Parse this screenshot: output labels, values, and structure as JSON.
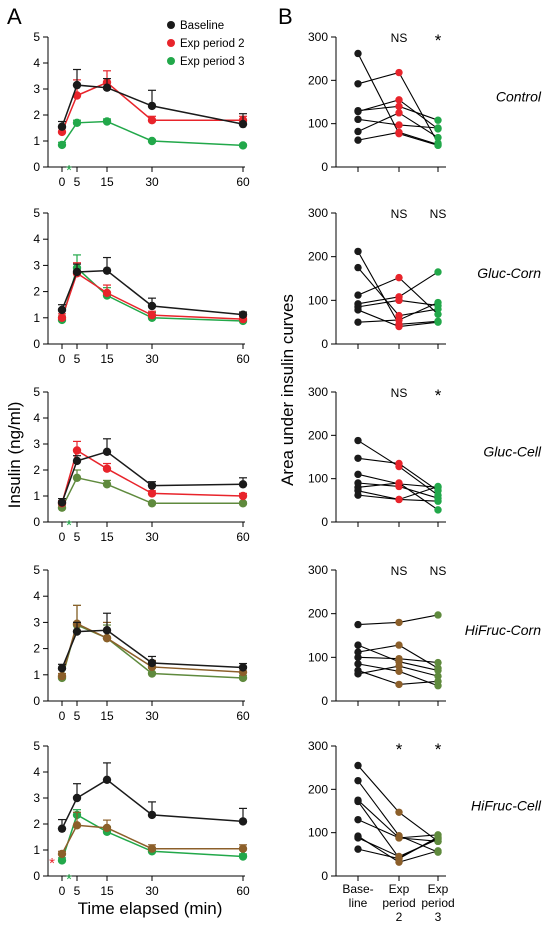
{
  "figure": {
    "panel_a_label": "A",
    "panel_b_label": "B",
    "a_ylabel": "Insulin (ng/ml)",
    "a_xlabel": "Time elapsed (min)",
    "b_ylabel": "Area under insulin curves",
    "legend": [
      {
        "name": "Baseline",
        "color": "#1a1a1a"
      },
      {
        "name": "Exp period 2",
        "color": "#e8242b"
      },
      {
        "name": "Exp period 3",
        "color": "#22a84a"
      }
    ],
    "b_x_labels": [
      [
        "Base-",
        "line"
      ],
      [
        "Exp",
        "period",
        "2"
      ],
      [
        "Exp",
        "period",
        "3"
      ]
    ]
  },
  "colors": {
    "baseline": "#1a1a1a",
    "period2": "#e8242b",
    "period3": "#22a84a",
    "period2_dark": "#8c5f2a",
    "period3_dark": "#5f8a3d"
  },
  "chart_data": [
    {
      "type": "line",
      "panel": "A",
      "row": 1,
      "x": [
        0,
        5,
        15,
        30,
        60
      ],
      "xlim": [
        0,
        60
      ],
      "ylim": [
        0,
        5
      ],
      "yticks": [
        0,
        1,
        2,
        3,
        4,
        5
      ],
      "xticks": [
        0,
        5,
        15,
        30,
        60
      ],
      "series": [
        {
          "name": "Baseline",
          "color": "#1a1a1a",
          "values": [
            1.55,
            3.15,
            3.05,
            2.35,
            1.65
          ],
          "err": [
            0.2,
            0.6,
            0.35,
            0.6,
            0.4
          ]
        },
        {
          "name": "Exp period 2",
          "color": "#e8242b",
          "values": [
            1.35,
            2.75,
            3.25,
            1.8,
            1.8
          ],
          "err": [
            0.15,
            0.6,
            0.45,
            0.15,
            0.15
          ]
        },
        {
          "name": "Exp period 3",
          "color": "#22a84a",
          "values": [
            0.85,
            1.7,
            1.75,
            1.0,
            0.83
          ],
          "err": [
            0.1,
            0.1,
            0.1,
            0.05,
            0.05
          ]
        }
      ],
      "annotations": [
        {
          "text": "*",
          "x": 5,
          "color": "#22a84a"
        }
      ]
    },
    {
      "type": "line",
      "panel": "A",
      "row": 2,
      "x": [
        0,
        5,
        15,
        30,
        60
      ],
      "xlim": [
        0,
        60
      ],
      "ylim": [
        0,
        5
      ],
      "yticks": [
        0,
        1,
        2,
        3,
        4,
        5
      ],
      "xticks": [
        0,
        5,
        15,
        30,
        60
      ],
      "series": [
        {
          "name": "Baseline",
          "color": "#1a1a1a",
          "values": [
            1.3,
            2.75,
            2.8,
            1.45,
            1.12
          ],
          "err": [
            0.2,
            0.3,
            0.5,
            0.3,
            0.1
          ]
        },
        {
          "name": "Exp period 2",
          "color": "#e8242b",
          "values": [
            1.0,
            2.7,
            1.95,
            1.1,
            0.95
          ],
          "err": [
            0.15,
            0.4,
            0.3,
            0.15,
            0.1
          ]
        },
        {
          "name": "Exp period 3",
          "color": "#22a84a",
          "values": [
            0.92,
            2.9,
            1.85,
            1.0,
            0.88
          ],
          "err": [
            0.15,
            0.5,
            0.3,
            0.2,
            0.1
          ]
        }
      ],
      "annotations": []
    },
    {
      "type": "line",
      "panel": "A",
      "row": 3,
      "x": [
        0,
        5,
        15,
        30,
        60
      ],
      "xlim": [
        0,
        60
      ],
      "ylim": [
        0,
        5
      ],
      "yticks": [
        0,
        1,
        2,
        3,
        4,
        5
      ],
      "xticks": [
        0,
        5,
        15,
        30,
        60
      ],
      "series": [
        {
          "name": "Baseline",
          "color": "#1a1a1a",
          "values": [
            0.75,
            2.35,
            2.7,
            1.4,
            1.45
          ],
          "err": [
            0.15,
            0.2,
            0.5,
            0.15,
            0.25
          ]
        },
        {
          "name": "Exp period 2",
          "color": "#e8242b",
          "values": [
            0.72,
            2.75,
            2.05,
            1.1,
            1.0
          ],
          "err": [
            0.1,
            0.35,
            0.2,
            0.1,
            0.1
          ]
        },
        {
          "name": "Exp period 3",
          "color": "#5f8a3d",
          "values": [
            0.55,
            1.7,
            1.45,
            0.72,
            0.72
          ],
          "err": [
            0.1,
            0.3,
            0.15,
            0.05,
            0.05
          ]
        }
      ],
      "annotations": [
        {
          "text": "*",
          "x": 5,
          "color": "#22a84a"
        }
      ]
    },
    {
      "type": "line",
      "panel": "A",
      "row": 4,
      "x": [
        0,
        5,
        15,
        30,
        60
      ],
      "xlim": [
        0,
        60
      ],
      "ylim": [
        0,
        5
      ],
      "yticks": [
        0,
        1,
        2,
        3,
        4,
        5
      ],
      "xticks": [
        0,
        5,
        15,
        30,
        60
      ],
      "series": [
        {
          "name": "Baseline",
          "color": "#1a1a1a",
          "values": [
            1.25,
            2.65,
            2.7,
            1.45,
            1.28
          ],
          "err": [
            0.15,
            0.35,
            0.65,
            0.25,
            0.15
          ]
        },
        {
          "name": "Exp period 2",
          "color": "#8c5f2a",
          "values": [
            0.95,
            2.95,
            2.4,
            1.3,
            1.1
          ],
          "err": [
            0.1,
            0.7,
            0.6,
            0.25,
            0.15
          ]
        },
        {
          "name": "Exp period 3",
          "color": "#5f8a3d",
          "values": [
            0.88,
            2.9,
            2.4,
            1.05,
            0.88
          ],
          "err": [
            0.1,
            0.75,
            0.5,
            0.2,
            0.1
          ]
        }
      ],
      "annotations": []
    },
    {
      "type": "line",
      "panel": "A",
      "row": 5,
      "x": [
        0,
        5,
        15,
        30,
        60
      ],
      "xlim": [
        0,
        60
      ],
      "ylim": [
        0,
        5
      ],
      "yticks": [
        0,
        1,
        2,
        3,
        4,
        5
      ],
      "xticks": [
        0,
        5,
        15,
        30,
        60
      ],
      "series": [
        {
          "name": "Baseline",
          "color": "#1a1a1a",
          "values": [
            1.82,
            3.0,
            3.7,
            2.35,
            2.1
          ],
          "err": [
            0.35,
            0.55,
            0.65,
            0.5,
            0.5
          ]
        },
        {
          "name": "Exp period 2",
          "color": "#8c5f2a",
          "values": [
            0.85,
            1.95,
            1.85,
            1.05,
            1.05
          ],
          "err": [
            0.1,
            0.5,
            0.3,
            0.15,
            0.15
          ]
        },
        {
          "name": "Exp period 3",
          "color": "#22a84a",
          "values": [
            0.6,
            2.35,
            1.7,
            0.95,
            0.75
          ],
          "err": [
            0.1,
            0.2,
            0.2,
            0.1,
            0.1
          ]
        }
      ],
      "annotations": [
        {
          "text": "*",
          "x": 0,
          "color": "#e8242b"
        },
        {
          "text": "*",
          "x": 5,
          "color": "#22a84a"
        }
      ]
    },
    {
      "type": "scatter",
      "panel": "B",
      "row": 1,
      "label": "Control",
      "ylim": [
        0,
        300
      ],
      "yticks": [
        0,
        100,
        200,
        300
      ],
      "categories": [
        "Base-line",
        "Exp period 2",
        "Exp period 3"
      ],
      "point_colors": [
        "#1a1a1a",
        "#e8242b",
        "#22a84a"
      ],
      "significance": [
        "",
        "NS",
        "*"
      ],
      "subjects": [
        [
          262,
          77,
          50
        ],
        [
          192,
          218,
          55
        ],
        [
          130,
          140,
          108
        ],
        [
          128,
          155,
          88
        ],
        [
          110,
          97,
          90
        ],
        [
          82,
          125,
          68
        ],
        [
          62,
          80,
          52
        ]
      ]
    },
    {
      "type": "scatter",
      "panel": "B",
      "row": 2,
      "label": "Gluc-Corn",
      "ylim": [
        0,
        300
      ],
      "yticks": [
        0,
        100,
        200,
        300
      ],
      "categories": [
        "Base-line",
        "Exp period 2",
        "Exp period 3"
      ],
      "point_colors": [
        "#1a1a1a",
        "#e8242b",
        "#22a84a"
      ],
      "significance": [
        "",
        "NS",
        "NS"
      ],
      "subjects": [
        [
          212,
          45,
          52
        ],
        [
          175,
          65,
          80
        ],
        [
          112,
          152,
          68
        ],
        [
          92,
          108,
          165
        ],
        [
          85,
          100,
          88
        ],
        [
          78,
          40,
          50
        ],
        [
          50,
          55,
          95
        ]
      ]
    },
    {
      "type": "scatter",
      "panel": "B",
      "row": 3,
      "label": "Gluc-Cell",
      "ylim": [
        0,
        300
      ],
      "yticks": [
        0,
        100,
        200,
        300
      ],
      "categories": [
        "Base-line",
        "Exp period 2",
        "Exp period 3"
      ],
      "point_colors": [
        "#1a1a1a",
        "#e8242b",
        "#22a84a"
      ],
      "significance": [
        "",
        "NS",
        "*"
      ],
      "subjects": [
        [
          188,
          128,
          62
        ],
        [
          147,
          135,
          72
        ],
        [
          110,
          88,
          80
        ],
        [
          90,
          82,
          55
        ],
        [
          80,
          90,
          28
        ],
        [
          72,
          52,
          82
        ],
        [
          62,
          52,
          48
        ]
      ]
    },
    {
      "type": "scatter",
      "panel": "B",
      "row": 4,
      "label": "HiFruc-Corn",
      "ylim": [
        0,
        300
      ],
      "yticks": [
        0,
        100,
        200,
        300
      ],
      "categories": [
        "Base-line",
        "Exp period 2",
        "Exp period 3"
      ],
      "point_colors": [
        "#1a1a1a",
        "#8c5f2a",
        "#5f8a3d"
      ],
      "significance": [
        "",
        "NS",
        "NS"
      ],
      "subjects": [
        [
          175,
          180,
          197
        ],
        [
          128,
          90,
          70
        ],
        [
          112,
          128,
          75
        ],
        [
          100,
          97,
          88
        ],
        [
          85,
          68,
          35
        ],
        [
          70,
          38,
          45
        ],
        [
          62,
          80,
          57
        ]
      ]
    },
    {
      "type": "scatter",
      "panel": "B",
      "row": 5,
      "label": "HiFruc-Cell",
      "ylim": [
        0,
        300
      ],
      "yticks": [
        0,
        100,
        200,
        300
      ],
      "categories": [
        "Base-line",
        "Exp period 2",
        "Exp period 3"
      ],
      "point_colors": [
        "#1a1a1a",
        "#8c5f2a",
        "#5f8a3d"
      ],
      "significance": [
        "",
        "*",
        "*"
      ],
      "subjects": [
        [
          255,
          147,
          80
        ],
        [
          220,
          93,
          55
        ],
        [
          175,
          88,
          95
        ],
        [
          172,
          42,
          87
        ],
        [
          130,
          88,
          80
        ],
        [
          92,
          32,
          58
        ],
        [
          88,
          45,
          85
        ],
        [
          62,
          40,
          90
        ]
      ]
    }
  ]
}
